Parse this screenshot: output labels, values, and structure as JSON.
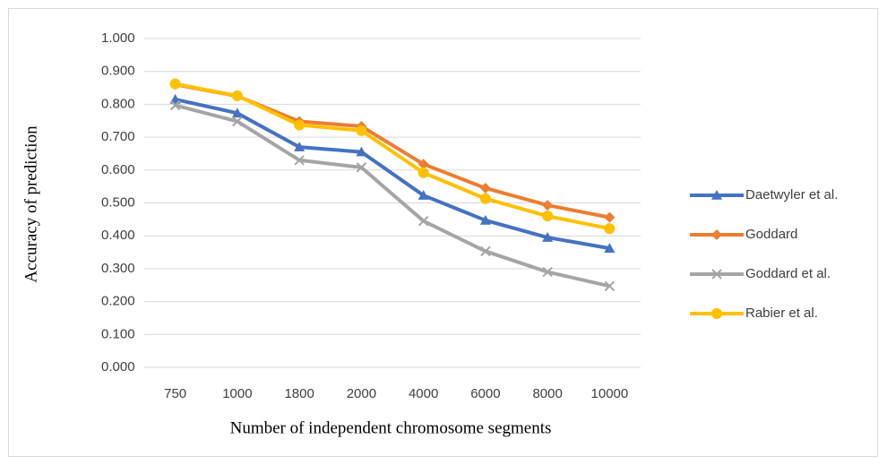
{
  "chart_data": {
    "type": "line",
    "x_label": "Number of independent chromosome segments",
    "y_label": "Accuracy of prediction",
    "categories": [
      "750",
      "1000",
      "1800",
      "2000",
      "4000",
      "6000",
      "8000",
      "10000"
    ],
    "series": [
      {
        "name": "Daetwyler et al.",
        "color": "#4472c4",
        "marker": "triangle",
        "values": [
          0.815,
          0.773,
          0.67,
          0.655,
          0.523,
          0.447,
          0.395,
          0.362
        ]
      },
      {
        "name": "Goddard",
        "color": "#ed7d31",
        "marker": "diamond",
        "values": [
          0.86,
          0.825,
          0.748,
          0.733,
          0.618,
          0.545,
          0.493,
          0.456
        ]
      },
      {
        "name": "Goddard et  al.",
        "color": "#a5a5a5",
        "marker": "x",
        "values": [
          0.797,
          0.748,
          0.63,
          0.608,
          0.445,
          0.353,
          0.29,
          0.247
        ]
      },
      {
        "name": "Rabier et al.",
        "color": "#ffc000",
        "marker": "circle",
        "values": [
          0.862,
          0.826,
          0.737,
          0.72,
          0.592,
          0.513,
          0.46,
          0.422
        ]
      }
    ],
    "ylim": [
      0,
      1
    ],
    "yticks": [
      {
        "value": 0,
        "label": "0.000"
      },
      {
        "value": 0.1,
        "label": "0.100"
      },
      {
        "value": 0.2,
        "label": "0.200"
      },
      {
        "value": 0.3,
        "label": "0.300"
      },
      {
        "value": 0.4,
        "label": "0.400"
      },
      {
        "value": 0.5,
        "label": "0.500"
      },
      {
        "value": 0.6,
        "label": "0.600"
      },
      {
        "value": 0.7,
        "label": "0.700"
      },
      {
        "value": 0.8,
        "label": "0.800"
      },
      {
        "value": 0.9,
        "label": "0.900"
      },
      {
        "value": 1,
        "label": "1.000"
      }
    ],
    "grid": true,
    "legend": "right"
  }
}
